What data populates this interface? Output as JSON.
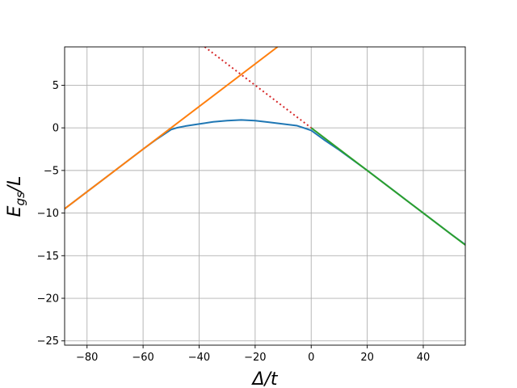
{
  "chart_data": {
    "type": "line",
    "title": "",
    "xlabel": "Δ/t",
    "ylabel_main": "E",
    "ylabel_sub": "gs",
    "ylabel_tail": "/L",
    "xlim": [
      -88,
      55
    ],
    "ylim": [
      -25.5,
      9.5
    ],
    "grid": true,
    "x_ticks": [
      -80,
      -60,
      -40,
      -20,
      0,
      20,
      40
    ],
    "x_tick_labels": [
      "−80",
      "−60",
      "−40",
      "−20",
      "0",
      "20",
      "40"
    ],
    "y_ticks": [
      -25,
      -20,
      -15,
      -10,
      -5,
      0,
      5
    ],
    "y_tick_labels": [
      "−25",
      "−20",
      "−15",
      "−10",
      "−5",
      "0",
      "5"
    ],
    "series": [
      {
        "color": "#1f77b4",
        "style": "solid",
        "x": [
          -88,
          -80,
          -70,
          -60,
          -55,
          -50,
          -48,
          -45,
          -40,
          -35,
          -30,
          -25,
          -20,
          -15,
          -10,
          -5,
          0,
          5,
          10,
          20,
          30,
          40,
          50,
          55
        ],
        "y": [
          -9.5,
          -7.5,
          -5.0,
          -2.5,
          -1.3,
          -0.2,
          0.0,
          0.2,
          0.45,
          0.7,
          0.85,
          0.93,
          0.85,
          0.65,
          0.45,
          0.25,
          -0.3,
          -1.5,
          -2.6,
          -5.0,
          -7.5,
          -10.0,
          -12.5,
          -13.7
        ]
      },
      {
        "color": "#ff7f0e",
        "style": "solid",
        "x": [
          -88,
          -12
        ],
        "y": [
          -9.5,
          9.5
        ]
      },
      {
        "color": "#2ca02c",
        "style": "solid",
        "x": [
          0,
          55
        ],
        "y": [
          0,
          -13.75
        ]
      },
      {
        "color": "#d62728",
        "style": "dotted",
        "x": [
          -38,
          0
        ],
        "y": [
          9.5,
          0
        ]
      }
    ]
  }
}
